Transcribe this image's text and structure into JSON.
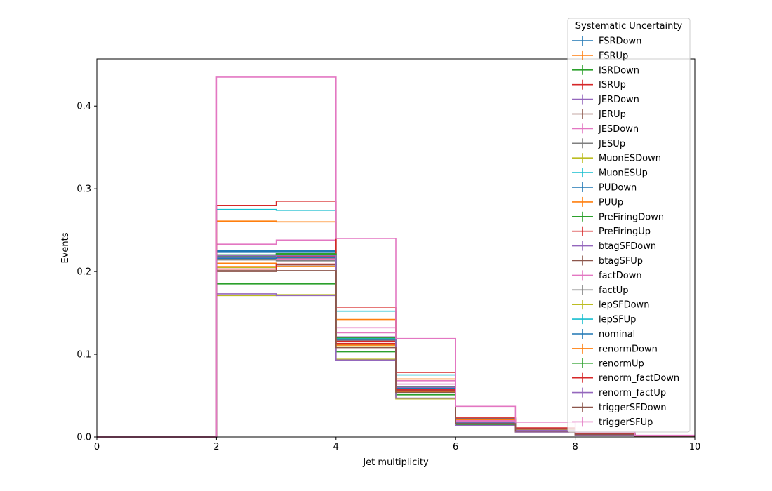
{
  "chart_data": {
    "type": "line",
    "style": "histogram-step",
    "xlabel": "Jet multiplicity",
    "ylabel": "Events",
    "xlim": [
      0,
      10
    ],
    "ylim": [
      0,
      0.457
    ],
    "x_ticks": [
      0,
      2,
      4,
      6,
      8,
      10
    ],
    "y_ticks": [
      0.0,
      0.1,
      0.2,
      0.3,
      0.4
    ],
    "grid": false,
    "legend": {
      "title": "Systematic Uncertainty",
      "placement": "top-right"
    },
    "bin_edges": [
      0,
      1,
      2,
      3,
      4,
      5,
      6,
      7,
      8,
      9,
      10
    ],
    "series": [
      {
        "name": "FSRDown",
        "color": "#1f77b4",
        "values": [
          0,
          0,
          0.225,
          0.225,
          0.12,
          0.06,
          0.018,
          0.008,
          0.003,
          0.001
        ]
      },
      {
        "name": "FSRUp",
        "color": "#ff7f0e",
        "values": [
          0,
          0,
          0.21,
          0.208,
          0.112,
          0.057,
          0.017,
          0.007,
          0.003,
          0.001
        ]
      },
      {
        "name": "ISRDown",
        "color": "#2ca02c",
        "values": [
          0,
          0,
          0.218,
          0.222,
          0.118,
          0.058,
          0.017,
          0.008,
          0.003,
          0.001
        ]
      },
      {
        "name": "ISRUp",
        "color": "#d62728",
        "values": [
          0,
          0,
          0.215,
          0.218,
          0.116,
          0.058,
          0.017,
          0.008,
          0.003,
          0.001
        ]
      },
      {
        "name": "JERDown",
        "color": "#9467bd",
        "values": [
          0,
          0,
          0.217,
          0.219,
          0.117,
          0.059,
          0.017,
          0.008,
          0.003,
          0.001
        ]
      },
      {
        "name": "JERUp",
        "color": "#8c564b",
        "values": [
          0,
          0,
          0.22,
          0.221,
          0.118,
          0.059,
          0.018,
          0.008,
          0.003,
          0.001
        ]
      },
      {
        "name": "JESDown",
        "color": "#e377c2",
        "values": [
          0,
          0,
          0.233,
          0.238,
          0.132,
          0.068,
          0.02,
          0.009,
          0.003,
          0.001
        ]
      },
      {
        "name": "JESUp",
        "color": "#7f7f7f",
        "values": [
          0,
          0,
          0.215,
          0.216,
          0.118,
          0.058,
          0.017,
          0.008,
          0.003,
          0.001
        ]
      },
      {
        "name": "MuonESDown",
        "color": "#bcbd22",
        "values": [
          0,
          0,
          0.171,
          0.172,
          0.094,
          0.046,
          0.014,
          0.006,
          0.002,
          0.001
        ]
      },
      {
        "name": "MuonESUp",
        "color": "#17becf",
        "values": [
          0,
          0,
          0.275,
          0.274,
          0.152,
          0.075,
          0.022,
          0.01,
          0.004,
          0.001
        ]
      },
      {
        "name": "PUDown",
        "color": "#1f77b4",
        "values": [
          0,
          0,
          0.224,
          0.224,
          0.121,
          0.061,
          0.018,
          0.008,
          0.003,
          0.001
        ]
      },
      {
        "name": "PUUp",
        "color": "#ff7f0e",
        "values": [
          0,
          0,
          0.261,
          0.26,
          0.142,
          0.07,
          0.021,
          0.009,
          0.003,
          0.001
        ]
      },
      {
        "name": "PreFiringDown",
        "color": "#2ca02c",
        "values": [
          0,
          0,
          0.185,
          0.185,
          0.103,
          0.051,
          0.015,
          0.007,
          0.002,
          0.001
        ]
      },
      {
        "name": "PreFiringUp",
        "color": "#d62728",
        "values": [
          0,
          0,
          0.28,
          0.285,
          0.157,
          0.078,
          0.023,
          0.011,
          0.004,
          0.001
        ]
      },
      {
        "name": "btagSFDown",
        "color": "#9467bd",
        "values": [
          0,
          0,
          0.173,
          0.171,
          0.093,
          0.047,
          0.014,
          0.006,
          0.002,
          0.001
        ]
      },
      {
        "name": "btagSFUp",
        "color": "#8c564b",
        "values": [
          0,
          0,
          0.2,
          0.208,
          0.112,
          0.056,
          0.016,
          0.007,
          0.003,
          0.001
        ]
      },
      {
        "name": "factDown",
        "color": "#e377c2",
        "values": [
          0,
          0,
          0.216,
          0.215,
          0.126,
          0.064,
          0.019,
          0.008,
          0.003,
          0.001
        ]
      },
      {
        "name": "factUp",
        "color": "#7f7f7f",
        "values": [
          0,
          0,
          0.214,
          0.213,
          0.117,
          0.058,
          0.017,
          0.008,
          0.003,
          0.001
        ]
      },
      {
        "name": "lepSFDown",
        "color": "#bcbd22",
        "values": [
          0,
          0,
          0.205,
          0.206,
          0.109,
          0.055,
          0.016,
          0.007,
          0.003,
          0.001
        ]
      },
      {
        "name": "lepSFUp",
        "color": "#17becf",
        "values": [
          0,
          0,
          0.22,
          0.22,
          0.119,
          0.06,
          0.018,
          0.008,
          0.003,
          0.001
        ]
      },
      {
        "name": "nominal",
        "color": "#1f77b4",
        "values": [
          0,
          0,
          0.216,
          0.217,
          0.118,
          0.059,
          0.017,
          0.008,
          0.003,
          0.001
        ]
      },
      {
        "name": "renormDown",
        "color": "#ff7f0e",
        "values": [
          0,
          0,
          0.206,
          0.206,
          0.111,
          0.055,
          0.016,
          0.007,
          0.003,
          0.001
        ]
      },
      {
        "name": "renormUp",
        "color": "#2ca02c",
        "values": [
          0,
          0,
          0.22,
          0.221,
          0.12,
          0.061,
          0.018,
          0.008,
          0.003,
          0.001
        ]
      },
      {
        "name": "renorm_factDown",
        "color": "#d62728",
        "values": [
          0,
          0,
          0.203,
          0.209,
          0.113,
          0.057,
          0.016,
          0.007,
          0.003,
          0.001
        ]
      },
      {
        "name": "renorm_factUp",
        "color": "#9467bd",
        "values": [
          0,
          0,
          0.219,
          0.219,
          0.121,
          0.06,
          0.018,
          0.008,
          0.003,
          0.001
        ]
      },
      {
        "name": "triggerSFDown",
        "color": "#8c564b",
        "values": [
          0,
          0,
          0.201,
          0.201,
          0.108,
          0.054,
          0.016,
          0.007,
          0.003,
          0.001
        ]
      },
      {
        "name": "triggerSFUp",
        "color": "#e377c2",
        "values": [
          0,
          0,
          0.435,
          0.435,
          0.24,
          0.119,
          0.037,
          0.018,
          0.006,
          0.002
        ]
      }
    ]
  }
}
